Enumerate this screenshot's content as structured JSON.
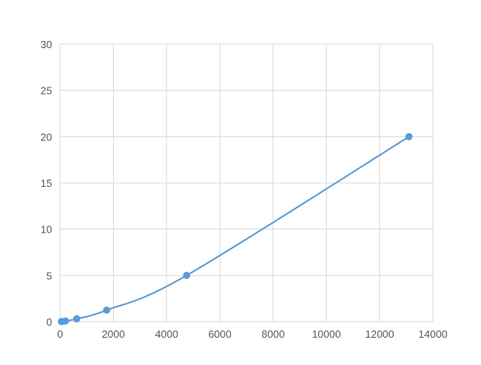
{
  "chart_data": {
    "type": "scatter",
    "title": "",
    "xlabel": "",
    "ylabel": "",
    "xlim": [
      0,
      14000
    ],
    "ylim": [
      0,
      30
    ],
    "xticks": [
      0,
      2000,
      4000,
      6000,
      8000,
      10000,
      12000,
      14000
    ],
    "yticks": [
      0,
      5,
      10,
      15,
      20,
      25,
      30
    ],
    "grid": true,
    "smooth_line": true,
    "color": "#5b9bd5",
    "series": [
      {
        "x": [
          50,
          200,
          625,
          1750,
          4750,
          13100
        ],
        "y": [
          0.02,
          0.08,
          0.31,
          1.25,
          5,
          20
        ]
      }
    ]
  }
}
